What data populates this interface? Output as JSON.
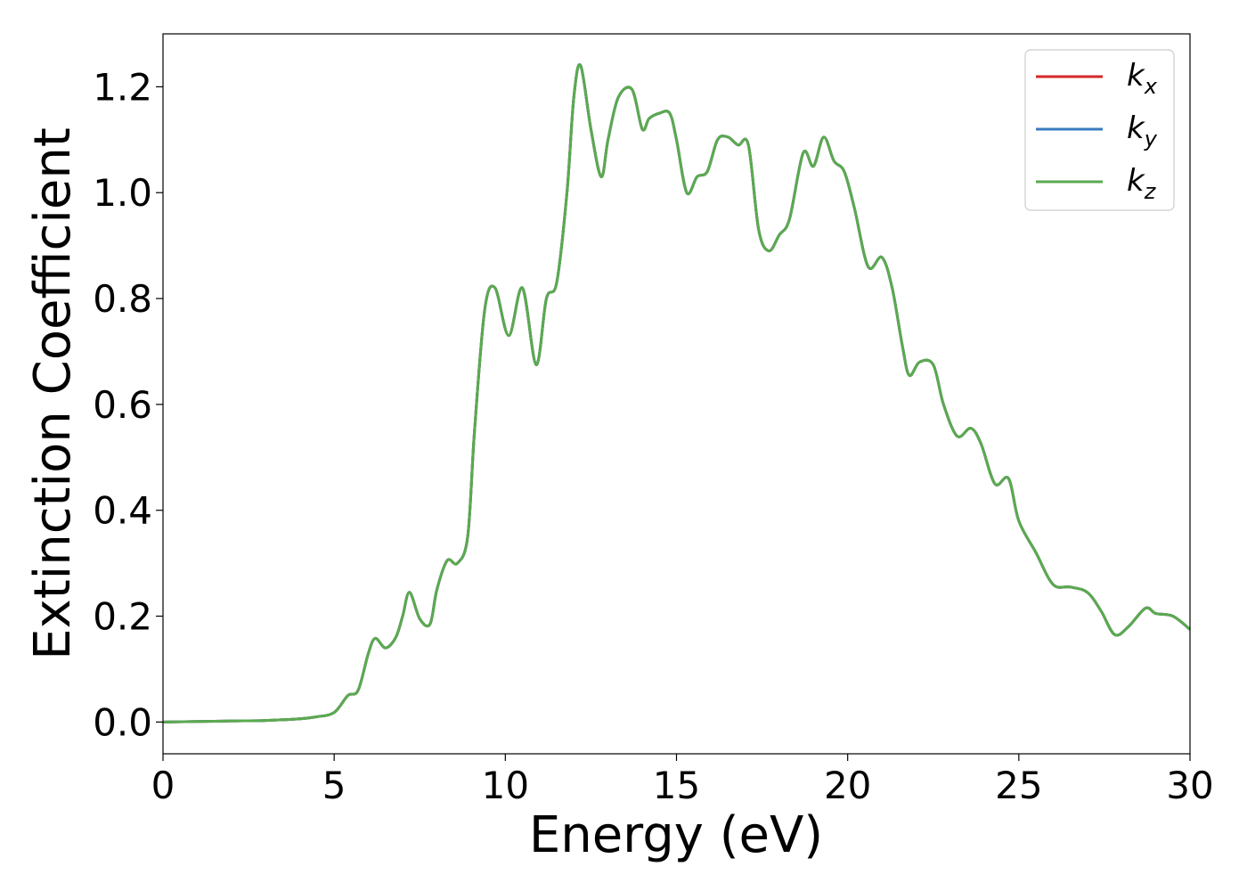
{
  "chart_data": {
    "type": "line",
    "title": "",
    "xlabel": "Energy (eV)",
    "ylabel": "Extinction Coefficient",
    "xlim": [
      0,
      30
    ],
    "ylim": [
      -0.06,
      1.3
    ],
    "xticks": [
      0,
      5,
      10,
      15,
      20,
      25,
      30
    ],
    "yticks": [
      0.0,
      0.2,
      0.4,
      0.6,
      0.8,
      1.0,
      1.2
    ],
    "xtick_labels": [
      "0",
      "5",
      "10",
      "15",
      "20",
      "25",
      "30"
    ],
    "ytick_labels": [
      "0.0",
      "0.2",
      "0.4",
      "0.6",
      "0.8",
      "1.0",
      "1.2"
    ],
    "grid": false,
    "legend_position": "top-right",
    "x": [
      0.0,
      1.0,
      2.0,
      3.0,
      4.0,
      4.5,
      5.0,
      5.4,
      5.7,
      6.0,
      6.2,
      6.5,
      6.8,
      7.0,
      7.2,
      7.5,
      7.8,
      8.0,
      8.3,
      8.6,
      8.9,
      9.1,
      9.4,
      9.7,
      10.1,
      10.5,
      10.9,
      11.2,
      11.5,
      11.8,
      12.0,
      12.2,
      12.5,
      12.8,
      13.0,
      13.3,
      13.7,
      14.0,
      14.2,
      14.5,
      14.8,
      15.0,
      15.3,
      15.6,
      15.9,
      16.2,
      16.5,
      16.8,
      17.1,
      17.4,
      17.7,
      18.0,
      18.3,
      18.7,
      19.0,
      19.3,
      19.6,
      19.9,
      20.2,
      20.6,
      21.0,
      21.3,
      21.6,
      21.8,
      22.1,
      22.5,
      22.8,
      23.2,
      23.6,
      23.9,
      24.3,
      24.7,
      25.0,
      25.5,
      26.0,
      26.5,
      27.0,
      27.4,
      27.8,
      28.2,
      28.7,
      29.0,
      29.5,
      30.0
    ],
    "series": [
      {
        "name": "k_x",
        "color": "#d62728",
        "values": [
          0.0,
          0.001,
          0.002,
          0.003,
          0.006,
          0.01,
          0.018,
          0.05,
          0.06,
          0.13,
          0.158,
          0.14,
          0.16,
          0.2,
          0.245,
          0.195,
          0.185,
          0.25,
          0.305,
          0.3,
          0.35,
          0.55,
          0.78,
          0.82,
          0.73,
          0.82,
          0.675,
          0.8,
          0.83,
          1.0,
          1.18,
          1.24,
          1.12,
          1.03,
          1.1,
          1.18,
          1.195,
          1.12,
          1.14,
          1.15,
          1.15,
          1.1,
          1.0,
          1.03,
          1.04,
          1.1,
          1.105,
          1.09,
          1.09,
          0.93,
          0.89,
          0.92,
          0.95,
          1.075,
          1.05,
          1.105,
          1.06,
          1.04,
          0.97,
          0.86,
          0.878,
          0.82,
          0.71,
          0.655,
          0.68,
          0.675,
          0.6,
          0.54,
          0.555,
          0.525,
          0.45,
          0.46,
          0.38,
          0.32,
          0.26,
          0.255,
          0.245,
          0.21,
          0.165,
          0.18,
          0.215,
          0.205,
          0.2,
          0.175
        ]
      },
      {
        "name": "k_y",
        "color": "#3a7bbf",
        "values": [
          0.0,
          0.001,
          0.002,
          0.003,
          0.006,
          0.01,
          0.018,
          0.05,
          0.06,
          0.13,
          0.158,
          0.14,
          0.16,
          0.2,
          0.245,
          0.195,
          0.185,
          0.25,
          0.305,
          0.3,
          0.35,
          0.55,
          0.78,
          0.82,
          0.73,
          0.82,
          0.675,
          0.8,
          0.83,
          1.0,
          1.18,
          1.24,
          1.12,
          1.03,
          1.1,
          1.18,
          1.195,
          1.12,
          1.14,
          1.15,
          1.15,
          1.1,
          1.0,
          1.03,
          1.04,
          1.1,
          1.105,
          1.09,
          1.09,
          0.93,
          0.89,
          0.92,
          0.95,
          1.075,
          1.05,
          1.105,
          1.06,
          1.04,
          0.97,
          0.86,
          0.878,
          0.82,
          0.71,
          0.655,
          0.68,
          0.675,
          0.6,
          0.54,
          0.555,
          0.525,
          0.45,
          0.46,
          0.38,
          0.32,
          0.26,
          0.255,
          0.245,
          0.21,
          0.165,
          0.18,
          0.215,
          0.205,
          0.2,
          0.175
        ]
      },
      {
        "name": "k_z",
        "color": "#5aaa4f",
        "values": [
          0.0,
          0.001,
          0.002,
          0.003,
          0.006,
          0.01,
          0.018,
          0.05,
          0.06,
          0.13,
          0.158,
          0.14,
          0.16,
          0.2,
          0.245,
          0.195,
          0.185,
          0.25,
          0.305,
          0.3,
          0.35,
          0.55,
          0.78,
          0.82,
          0.73,
          0.82,
          0.675,
          0.8,
          0.83,
          1.0,
          1.18,
          1.24,
          1.12,
          1.03,
          1.1,
          1.18,
          1.195,
          1.12,
          1.14,
          1.15,
          1.15,
          1.1,
          1.0,
          1.03,
          1.04,
          1.1,
          1.105,
          1.09,
          1.09,
          0.93,
          0.89,
          0.92,
          0.95,
          1.075,
          1.05,
          1.105,
          1.06,
          1.04,
          0.97,
          0.86,
          0.878,
          0.82,
          0.71,
          0.655,
          0.68,
          0.675,
          0.6,
          0.54,
          0.555,
          0.525,
          0.45,
          0.46,
          0.38,
          0.32,
          0.26,
          0.255,
          0.245,
          0.21,
          0.165,
          0.18,
          0.215,
          0.205,
          0.2,
          0.175
        ]
      }
    ],
    "legend": [
      {
        "base": "k",
        "sub": "x"
      },
      {
        "base": "k",
        "sub": "y"
      },
      {
        "base": "k",
        "sub": "z"
      }
    ]
  }
}
